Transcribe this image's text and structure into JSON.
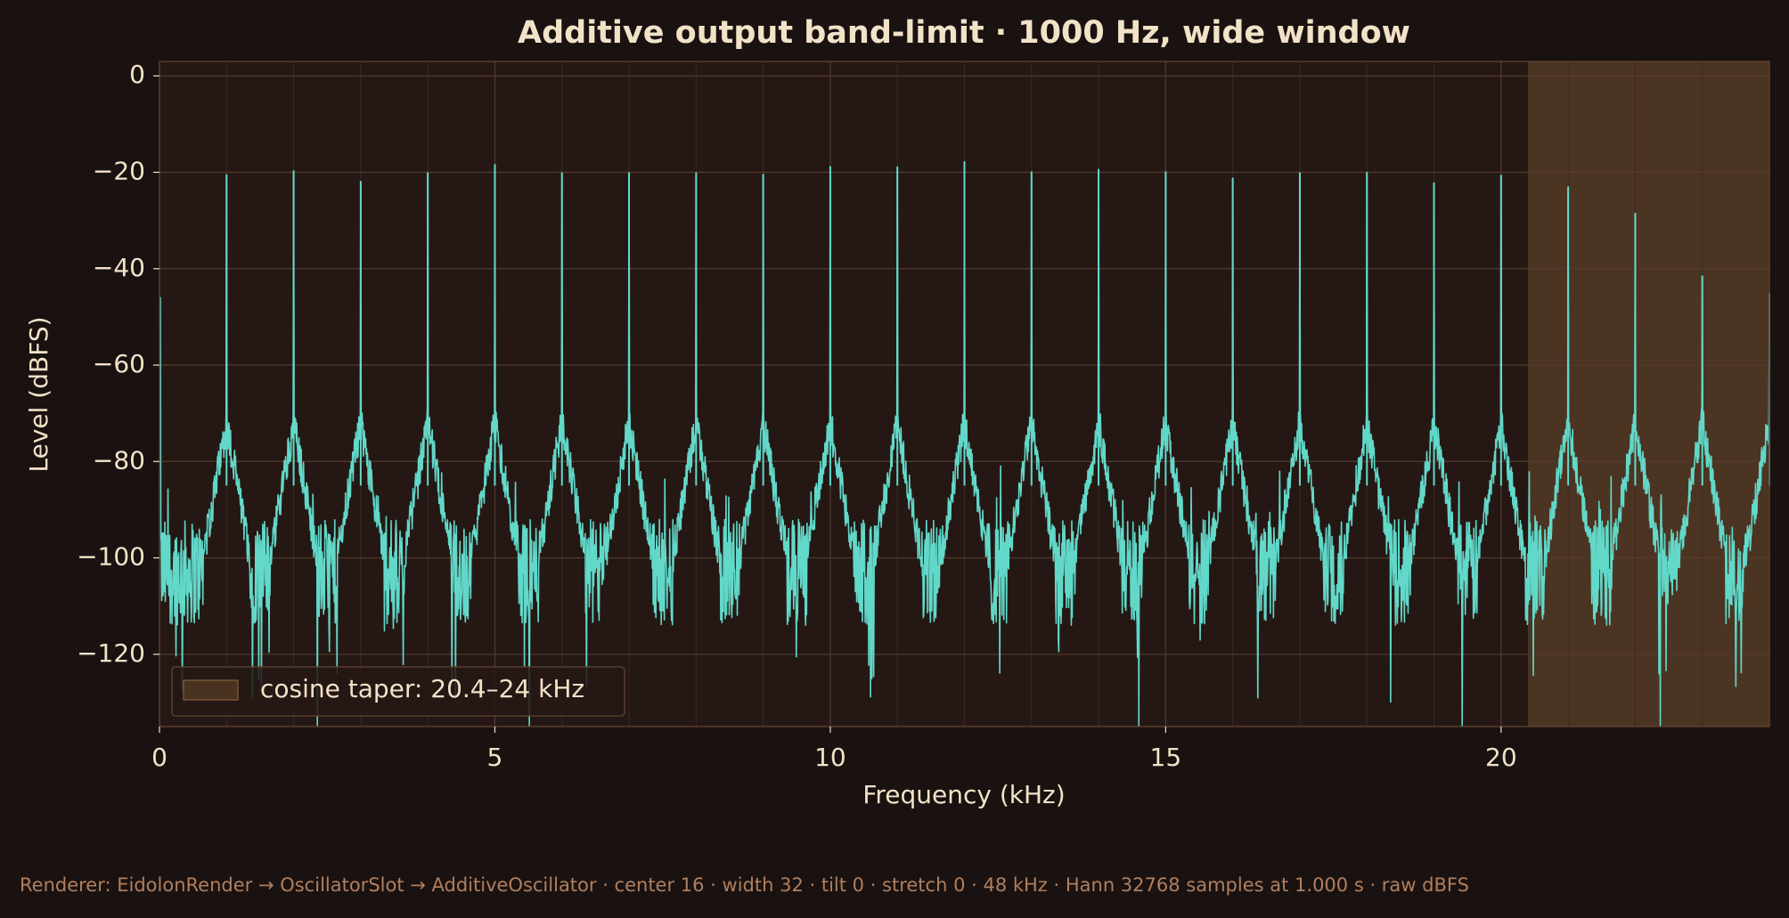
{
  "chart_data": {
    "type": "line",
    "title": "Additive output band-limit · 1000 Hz, wide window",
    "xlabel": "Frequency (kHz)",
    "ylabel": "Level (dBFS)",
    "xlim": [
      0,
      24
    ],
    "ylim": [
      -135,
      3
    ],
    "x_ticks": [
      0,
      5,
      10,
      15,
      20
    ],
    "y_ticks": [
      0,
      -20,
      -40,
      -60,
      -80,
      -100,
      -120
    ],
    "x_tick_labels": [
      "0",
      "5",
      "10",
      "15",
      "20"
    ],
    "y_tick_labels": [
      "0",
      "−20",
      "−40",
      "−60",
      "−80",
      "−100",
      "−120"
    ],
    "grid": true,
    "series": [
      {
        "color": "#62d8c9",
        "harmonics_khz": [
          1,
          2,
          3,
          4,
          5,
          6,
          7,
          8,
          9,
          10,
          11,
          12,
          13,
          14,
          15,
          16,
          17,
          18,
          19,
          20,
          21,
          22,
          23,
          24
        ],
        "peak_levels_dbfs": [
          -20.5,
          -19.7,
          -21.9,
          -20.1,
          -18.4,
          -20.1,
          -20.1,
          -20.1,
          -20.4,
          -18.8,
          -18.9,
          -17.8,
          -19.9,
          -19.4,
          -19.9,
          -21.2,
          -20.1,
          -20.0,
          -22.2,
          -20.6,
          -23.0,
          -28.5,
          -41.5,
          -45.0
        ],
        "noise_floor_dbfs": -103
      }
    ],
    "shaded_region": {
      "label": "cosine taper: 20.4–24 kHz",
      "x_range": [
        20.4,
        24
      ],
      "color": "#6e4d2e"
    },
    "legend": {
      "position": "lower-left",
      "entries": [
        "cosine taper: 20.4–24 kHz"
      ]
    }
  },
  "footer": {
    "text": "Renderer: EidolonRender → OscillatorSlot → AdditiveOscillator · center 16 · width 32 · tilt 0 · stretch 0 · 48 kHz · Hann 32768 samples at 1.000 s · raw dBFS"
  },
  "colors": {
    "background": "#1a1210",
    "plot_background": "#251814",
    "line": "#62d8c9",
    "text": "#f2e2c8",
    "footer_text": "#b07f5f"
  }
}
